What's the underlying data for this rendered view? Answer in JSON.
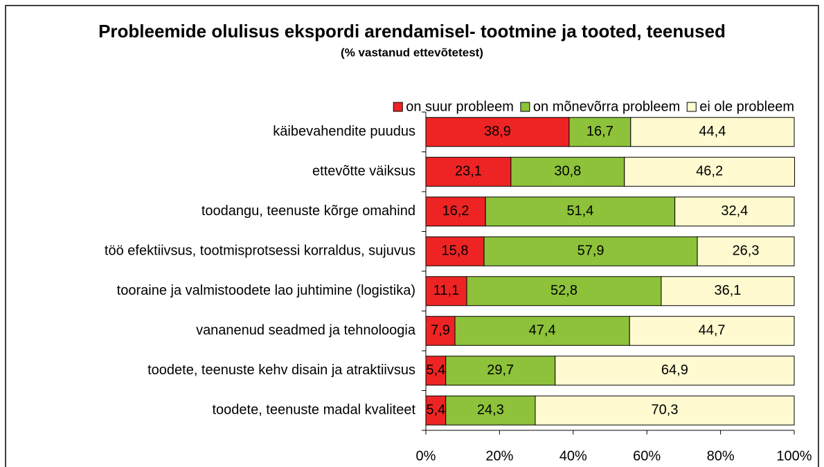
{
  "chart_data": {
    "type": "bar",
    "orientation": "horizontal",
    "stacked": true,
    "title": "Probleemide olulisus ekspordi arendamisel- tootmine ja tooted, teenused",
    "subtitle": "(% vastanud ettevõtetest)",
    "categories": [
      "käibevahendite puudus",
      "ettevõtte väiksus",
      "toodangu, teenuste kõrge omahind",
      "töö efektiivsus, tootmisprotsessi korraldus, sujuvus",
      "tooraine ja valmistoodete lao juhtimine (logistika)",
      "vananenud seadmed ja tehnoloogia",
      "toodete, teenuste kehv disain ja atraktiivsus",
      "toodete, teenuste madal kvaliteet"
    ],
    "series": [
      {
        "name": "on suur probleem",
        "color": "#ee2424",
        "values": [
          38.9,
          23.1,
          16.2,
          15.8,
          11.1,
          7.9,
          5.4,
          5.4
        ],
        "value_labels": [
          "38,9",
          "23,1",
          "16,2",
          "15,8",
          "11,1",
          "7,9",
          "5,4",
          "5,4"
        ]
      },
      {
        "name": "on mõnevõrra probleem",
        "color": "#8dc23a",
        "values": [
          16.7,
          30.8,
          51.4,
          57.9,
          52.8,
          47.4,
          29.7,
          24.3
        ],
        "value_labels": [
          "16,7",
          "30,8",
          "51,4",
          "57,9",
          "52,8",
          "47,4",
          "29,7",
          "24,3"
        ]
      },
      {
        "name": "ei ole probleem",
        "color": "#fffad0",
        "values": [
          44.4,
          46.2,
          32.4,
          26.3,
          36.1,
          44.7,
          64.9,
          70.3
        ],
        "value_labels": [
          "44,4",
          "46,2",
          "32,4",
          "26,3",
          "36,1",
          "44,7",
          "64,9",
          "70,3"
        ]
      }
    ],
    "xlim": [
      0,
      100
    ],
    "xticks": [
      {
        "value": 0,
        "label": "0%"
      },
      {
        "value": 20,
        "label": "20%"
      },
      {
        "value": 40,
        "label": "40%"
      },
      {
        "value": 60,
        "label": "60%"
      },
      {
        "value": 80,
        "label": "80%"
      },
      {
        "value": 100,
        "label": "100%"
      }
    ],
    "legend": "top-right"
  }
}
